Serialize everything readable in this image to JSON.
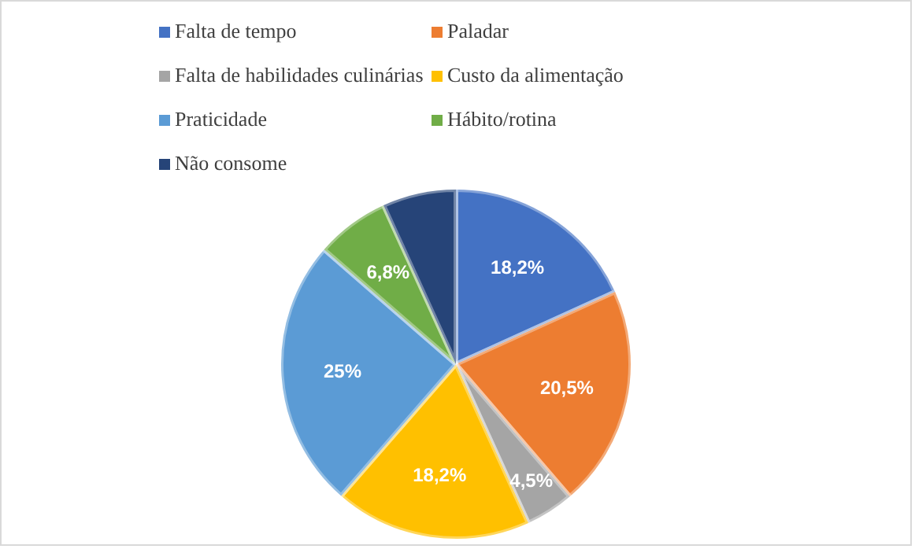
{
  "chart_data": {
    "type": "pie",
    "categories": [
      "Falta de tempo",
      "Paladar",
      "Falta de habilidades culinárias",
      "Custo da alimentação",
      "Praticidade",
      "Hábito/rotina",
      "Não consome"
    ],
    "values": [
      18.2,
      20.5,
      4.5,
      18.2,
      25,
      6.8,
      6.8
    ],
    "colors": [
      "#4472c4",
      "#ed7d31",
      "#a5a5a5",
      "#ffc000",
      "#5b9bd5",
      "#70ad47",
      "#264478"
    ],
    "value_labels": [
      "18,2%",
      "20,5%",
      "4,5%",
      "18,2%",
      "25%",
      "6,8%",
      null
    ],
    "legend": "top"
  }
}
